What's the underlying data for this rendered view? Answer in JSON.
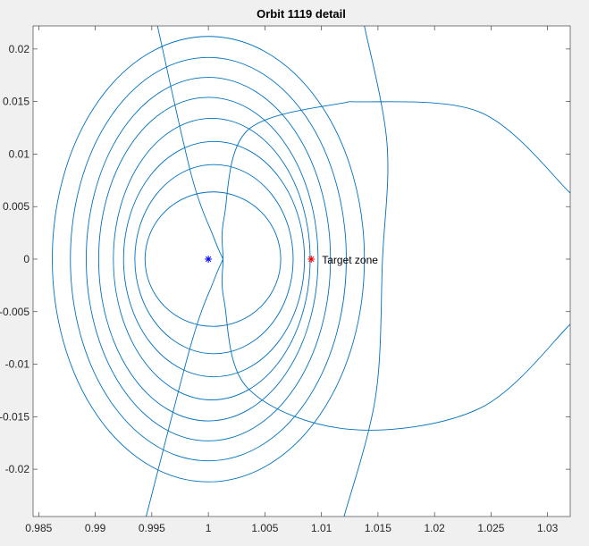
{
  "chart_data": {
    "type": "line",
    "title": "Orbit 1119 detail",
    "xlabel": "",
    "ylabel": "",
    "xlim": [
      0.9845,
      1.032
    ],
    "ylim": [
      -0.0245,
      0.0222
    ],
    "grid": false,
    "xticks": [
      0.985,
      0.99,
      0.995,
      1,
      1.005,
      1.01,
      1.015,
      1.02,
      1.025,
      1.03
    ],
    "xtick_labels": [
      "0.985",
      "0.99",
      "0.995",
      "1",
      "1.005",
      "1.01",
      "1.015",
      "1.02",
      "1.025",
      "1.03"
    ],
    "yticks": [
      -0.02,
      -0.015,
      -0.01,
      -0.005,
      0,
      0.005,
      0.01,
      0.015,
      0.02
    ],
    "ytick_labels": [
      "-0.02",
      "-0.015",
      "-0.01",
      "-0.005",
      "0",
      "0.005",
      "0.01",
      "0.015",
      "0.02"
    ],
    "line_color": "#0072bd",
    "markers": [
      {
        "x": 1.0,
        "y": 0.0,
        "symbol": "*",
        "color": "#0000ff",
        "label": ""
      },
      {
        "x": 1.0091,
        "y": 0.0,
        "symbol": "*",
        "color": "#ff0000",
        "label": "Target zone"
      }
    ],
    "series": [
      {
        "type": "loop",
        "cx": 1.0,
        "cy": 0.0,
        "rx": 0.0138,
        "ry": 0.0212
      },
      {
        "type": "loop",
        "cx": 1.0,
        "cy": 0.0,
        "rx": 0.0122,
        "ry": 0.0192
      },
      {
        "type": "loop",
        "cx": 1.0,
        "cy": 0.0,
        "rx": 0.0108,
        "ry": 0.0173
      },
      {
        "type": "loop",
        "cx": 1.0,
        "cy": 0.0,
        "rx": 0.0097,
        "ry": 0.0154
      },
      {
        "type": "loop",
        "cx": 1.0003,
        "cy": 0.0,
        "rx": 0.0087,
        "ry": 0.0134
      },
      {
        "type": "loop",
        "cx": 1.0005,
        "cy": 0.0,
        "rx": 0.008,
        "ry": 0.0112
      },
      {
        "type": "loop",
        "cx": 1.0005,
        "cy": 0.0,
        "rx": 0.007,
        "ry": 0.009
      },
      {
        "type": "loop",
        "cx": 1.0004,
        "cy": 0.0,
        "rx": 0.006,
        "ry": 0.0064
      },
      {
        "type": "path",
        "points": [
          [
            1.0125,
            0.015
          ],
          [
            1.0035,
            0.0123
          ],
          [
            1.0014,
            0.004
          ],
          [
            1.0013,
            0.0
          ],
          [
            1.0014,
            -0.004
          ],
          [
            1.0035,
            -0.0123
          ],
          [
            1.0125,
            -0.0162
          ],
          [
            1.024,
            -0.0142
          ],
          [
            1.032,
            -0.0062
          ]
        ]
      },
      {
        "type": "path",
        "points": [
          [
            1.032,
            0.0063
          ],
          [
            1.024,
            0.014
          ],
          [
            1.0125,
            0.015
          ]
        ]
      },
      {
        "type": "path",
        "points": [
          [
            0.9955,
            0.0222
          ],
          [
            0.9985,
            0.008
          ],
          [
            1.0005,
            0.002
          ],
          [
            1.0013,
            0.0
          ]
        ]
      },
      {
        "type": "path",
        "points": [
          [
            1.0013,
            0.0
          ],
          [
            1.0005,
            -0.002
          ],
          [
            0.9985,
            -0.008
          ],
          [
            0.9945,
            -0.0245
          ]
        ]
      },
      {
        "type": "path",
        "points": [
          [
            1.0138,
            0.0222
          ],
          [
            1.0158,
            0.011
          ],
          [
            1.0154,
            0.0
          ],
          [
            1.0148,
            -0.013
          ],
          [
            1.012,
            -0.0245
          ]
        ]
      }
    ]
  }
}
